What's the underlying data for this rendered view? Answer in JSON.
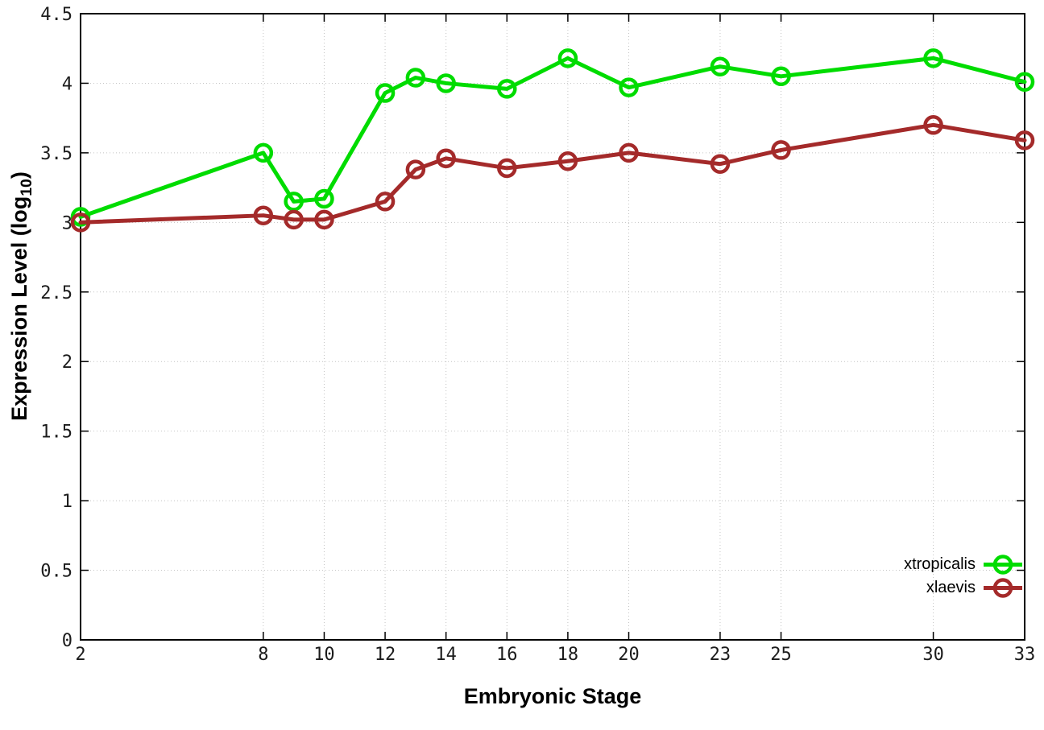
{
  "chart_data": {
    "type": "line",
    "title": "",
    "xlabel": "Embryonic Stage",
    "ylabel": "Expression Level (log10)",
    "ylabel_parts": {
      "main": "Expression Level (log",
      "sub": "10",
      "end": ")"
    },
    "x": [
      2,
      8,
      9,
      10,
      12,
      13,
      14,
      16,
      18,
      20,
      23,
      25,
      30,
      33
    ],
    "series": [
      {
        "name": "xtropicalis",
        "color": "#00DC00",
        "values": [
          3.04,
          3.5,
          3.15,
          3.17,
          3.93,
          4.04,
          4.0,
          3.96,
          4.18,
          3.97,
          4.12,
          4.05,
          4.18,
          4.01
        ]
      },
      {
        "name": "xlaevis",
        "color": "#A42A2A",
        "values": [
          3.0,
          3.05,
          3.02,
          3.02,
          3.15,
          3.38,
          3.46,
          3.39,
          3.44,
          3.5,
          3.42,
          3.52,
          3.7,
          3.59
        ]
      }
    ],
    "xlim": [
      2,
      33
    ],
    "ylim": [
      0,
      4.5
    ],
    "xticks": {
      "values": [
        2,
        8,
        10,
        12,
        14,
        16,
        18,
        20,
        23,
        25,
        30,
        33
      ],
      "labels": [
        "2",
        "8",
        "10",
        "12",
        "14",
        "16",
        "18",
        "20",
        "23",
        "25",
        "30",
        "33"
      ]
    },
    "yticks": {
      "values": [
        0,
        0.5,
        1,
        1.5,
        2,
        2.5,
        3,
        3.5,
        4,
        4.5
      ],
      "labels": [
        "0",
        "0.5",
        "1",
        "1.5",
        "2",
        "2.5",
        "3",
        "3.5",
        "4",
        "4.5"
      ]
    },
    "grid": true,
    "grid_color": "#c4c4c4",
    "axis_color": "#000000",
    "marker": "open-circle",
    "legend_position": "bottom-right"
  }
}
